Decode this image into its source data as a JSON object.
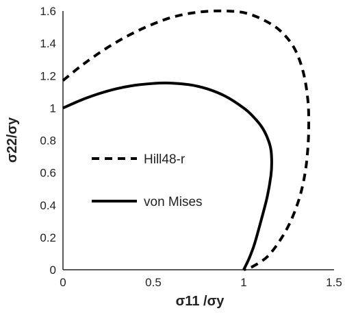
{
  "chart_data": {
    "type": "line",
    "xlabel": "σ11 /σy",
    "ylabel": "σ22/σy",
    "xlim": [
      0,
      1.5
    ],
    "ylim": [
      0,
      1.6
    ],
    "x_ticks": [
      "0",
      "0.5",
      "1",
      "1.5"
    ],
    "y_ticks": [
      "0",
      "0.2",
      "0.4",
      "0.6",
      "0.8",
      "1",
      "1.2",
      "1.4",
      "1.6"
    ],
    "grid": false,
    "legend_position": "center-left",
    "series": [
      {
        "name": "Hill48-r",
        "style": "dashed",
        "color": "#000000",
        "points": [
          [
            0,
            1.17
          ],
          [
            0.1,
            1.26
          ],
          [
            0.2,
            1.34
          ],
          [
            0.3,
            1.41
          ],
          [
            0.4,
            1.47
          ],
          [
            0.5,
            1.52
          ],
          [
            0.6,
            1.56
          ],
          [
            0.7,
            1.585
          ],
          [
            0.8,
            1.598
          ],
          [
            0.9,
            1.6
          ],
          [
            1.0,
            1.59
          ],
          [
            1.1,
            1.55
          ],
          [
            1.2,
            1.48
          ],
          [
            1.28,
            1.37
          ],
          [
            1.33,
            1.22
          ],
          [
            1.355,
            1.05
          ],
          [
            1.36,
            0.9
          ],
          [
            1.355,
            0.75
          ],
          [
            1.34,
            0.6
          ],
          [
            1.31,
            0.45
          ],
          [
            1.26,
            0.3
          ],
          [
            1.2,
            0.18
          ],
          [
            1.13,
            0.08
          ],
          [
            1.05,
            0.02
          ],
          [
            1.0,
            0
          ]
        ]
      },
      {
        "name": "von Mises",
        "style": "solid",
        "color": "#000000",
        "points": [
          [
            0,
            1.0
          ],
          [
            0.1,
            1.049
          ],
          [
            0.2,
            1.089
          ],
          [
            0.3,
            1.12
          ],
          [
            0.4,
            1.141
          ],
          [
            0.5,
            1.152
          ],
          [
            0.57735,
            1.1547
          ],
          [
            0.7,
            1.144
          ],
          [
            0.8,
            1.118
          ],
          [
            0.9,
            1.072
          ],
          [
            1.0,
            1.0
          ],
          [
            1.05,
            0.95
          ],
          [
            1.1,
            0.883
          ],
          [
            1.13,
            0.819
          ],
          [
            1.15,
            0.747
          ],
          [
            1.155,
            0.66
          ],
          [
            1.15,
            0.577
          ],
          [
            1.13,
            0.45
          ],
          [
            1.1,
            0.32
          ],
          [
            1.06,
            0.16
          ],
          [
            1.03,
            0.07
          ],
          [
            1.0,
            0
          ]
        ]
      }
    ]
  }
}
